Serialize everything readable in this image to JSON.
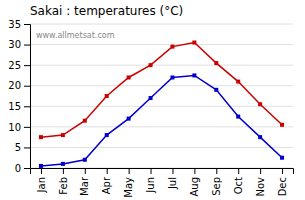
{
  "chart_data": {
    "type": "line",
    "title": "Sakai : temperatures (°C)",
    "categories": [
      "Jan",
      "Feb",
      "Mar",
      "Apr",
      "May",
      "Jun",
      "Jul",
      "Aug",
      "Sep",
      "Oct",
      "Nov",
      "Dec"
    ],
    "series": [
      {
        "color": "#cc0000",
        "marker": "square",
        "line_style": "solid",
        "values": [
          7.5,
          8.0,
          11.5,
          17.5,
          22.0,
          25.0,
          29.5,
          30.5,
          25.5,
          21.0,
          15.5,
          10.5
        ]
      },
      {
        "color": "#0000cc",
        "marker": "square",
        "line_style": "solid",
        "values": [
          0.5,
          1.0,
          2.0,
          8.0,
          12.0,
          17.0,
          22.0,
          22.5,
          19.0,
          12.5,
          7.5,
          2.5
        ]
      }
    ],
    "ylim": [
      0,
      35
    ],
    "yticks": [
      0,
      5,
      10,
      15,
      20,
      25,
      30,
      35
    ],
    "grid": true,
    "annotations": [
      "www.allmetsat.com"
    ]
  }
}
